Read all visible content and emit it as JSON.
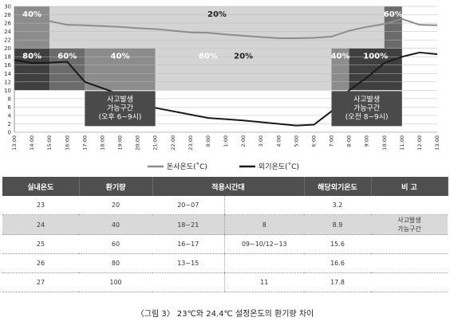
{
  "chart_data": {
    "type": "line",
    "x": [
      "13:00",
      "14:00",
      "15:00",
      "16:00",
      "17:00",
      "18:00",
      "19:00",
      "20:00",
      "21:00",
      "22:00",
      "23:00",
      "0:00",
      "1:00",
      "2:00",
      "3:00",
      "4:00",
      "5:00",
      "6:00",
      "7:00",
      "8:00",
      "9:00",
      "10:00",
      "11:00",
      "12:00",
      "13:00"
    ],
    "series": [
      {
        "name": "돈사온도(˚C)",
        "color": "#8c8c8c",
        "values": [
          26.4,
          26.5,
          26.5,
          25.6,
          25.5,
          25.3,
          25.1,
          24.8,
          24.6,
          24.2,
          23.8,
          23.7,
          23.3,
          23.0,
          22.7,
          22.4,
          22.4,
          22.5,
          22.8,
          24.2,
          25.1,
          25.8,
          27.0,
          25.6,
          25.5
        ]
      },
      {
        "name": "외기온도(˚C)",
        "color": "#1a1a1a",
        "values": [
          17.2,
          16.5,
          16.6,
          16.8,
          12.0,
          10.5,
          9.0,
          7.2,
          5.8,
          5.0,
          4.2,
          3.4,
          3.1,
          2.8,
          2.4,
          2.0,
          1.6,
          1.8,
          5.0,
          10.0,
          13.0,
          16.5,
          18.0,
          19.0,
          18.6
        ]
      }
    ],
    "ylim": [
      0,
      30
    ],
    "yticks": [
      0,
      2,
      4,
      6,
      8,
      10,
      12,
      14,
      16,
      18,
      20,
      22,
      24,
      26,
      28,
      30
    ],
    "legend_position": "bottom",
    "upper_bands": [
      {
        "from": "13:00",
        "to": "15:00",
        "label": "40%",
        "shade": "#8c8c8c"
      },
      {
        "from": "15:00",
        "to": "10:00",
        "label": "20%",
        "shade": "#d4d4d4"
      },
      {
        "from": "10:00",
        "to": "11:00",
        "label": "60%",
        "shade": "#6b6b6b"
      },
      {
        "from": "11:00",
        "to": "13:00",
        "label": "",
        "shade": "#d4d4d4"
      }
    ],
    "lower_bands": [
      {
        "from": "13:00",
        "to": "15:00",
        "label": "80%",
        "shade": "#3f3f3f"
      },
      {
        "from": "15:00",
        "to": "17:00",
        "label": "60%",
        "shade": "#6b6b6b"
      },
      {
        "from": "17:00",
        "to": "21:00",
        "label": "40%",
        "shade": "#8c8c8c"
      },
      {
        "from": "21:00",
        "to": "7:00",
        "label": "20%",
        "shade": "#d4d4d4"
      },
      {
        "from": "7:00",
        "to": "8:00",
        "label": "40%",
        "shade": "#8c8c8c"
      },
      {
        "from": "8:00",
        "to": "11:00",
        "label": "100%",
        "shade": "#3f3f3f"
      },
      {
        "from": "11:00",
        "to": "13:00",
        "label": "60%",
        "shade": "#6b6b6b"
      }
    ],
    "annotations": [
      {
        "text": [
          "사고발생",
          "가능구간",
          "(오후 6~9시)"
        ],
        "from": "17:00",
        "to": "21:00"
      },
      {
        "text": [
          "사고발생",
          "가능구간",
          "(오전 8~9시)"
        ],
        "from": "7:00",
        "to": "11:00"
      }
    ]
  },
  "table": {
    "headers": [
      "실내온도",
      "환기량",
      "적용시간대",
      "해당외기온도",
      "비 고"
    ],
    "rows": [
      {
        "temp": "23",
        "vent": "20",
        "time_a": "20~07",
        "time_b": "",
        "outside": "3.2",
        "note": ""
      },
      {
        "temp": "24",
        "vent": "40",
        "time_a": "18~21",
        "time_b": "8",
        "outside": "8.9",
        "note": "사고발생\n가능구간"
      },
      {
        "temp": "25",
        "vent": "60",
        "time_a": "16~17",
        "time_b": "09~10/12~13",
        "outside": "15.6",
        "note": ""
      },
      {
        "temp": "26",
        "vent": "80",
        "time_a": "13~15",
        "time_b": "",
        "outside": "16.6",
        "note": ""
      },
      {
        "temp": "27",
        "vent": "100",
        "time_a": "",
        "time_b": "11",
        "outside": "17.8",
        "note": ""
      }
    ]
  },
  "caption": "〈그림 3〉 23℃와 24.4℃ 설정온도의 환기량 차이"
}
